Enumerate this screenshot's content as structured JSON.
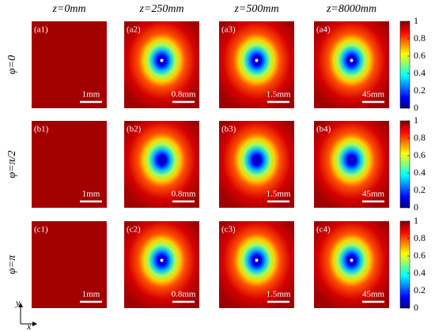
{
  "columns": [
    "z=0mm",
    "z=250mm",
    "z=500mm",
    "z=8000mm"
  ],
  "rows": [
    {
      "label": "φ=0",
      "panels": [
        {
          "label": "(a1)",
          "scale": "1mm"
        },
        {
          "label": "(a2)",
          "scale": "0.8mm"
        },
        {
          "label": "(a3)",
          "scale": "1.5mm"
        },
        {
          "label": "(a4)",
          "scale": "45mm"
        }
      ]
    },
    {
      "label": "φ=π/2",
      "panels": [
        {
          "label": "(b1)",
          "scale": "1mm"
        },
        {
          "label": "(b2)",
          "scale": "0.8mm"
        },
        {
          "label": "(b3)",
          "scale": "1.5mm"
        },
        {
          "label": "(b4)",
          "scale": "45mm"
        }
      ]
    },
    {
      "label": "φ=π",
      "panels": [
        {
          "label": "(c1)",
          "scale": "1mm"
        },
        {
          "label": "(c2)",
          "scale": "0.8mm"
        },
        {
          "label": "(c3)",
          "scale": "1.5mm"
        },
        {
          "label": "(c4)",
          "scale": "45mm"
        }
      ]
    }
  ],
  "colorbar": {
    "lim": [
      0,
      1
    ],
    "ticks": [
      0,
      0.2,
      0.4,
      0.6,
      0.8,
      1
    ]
  },
  "axes": {
    "x": "x",
    "y": "y"
  }
}
